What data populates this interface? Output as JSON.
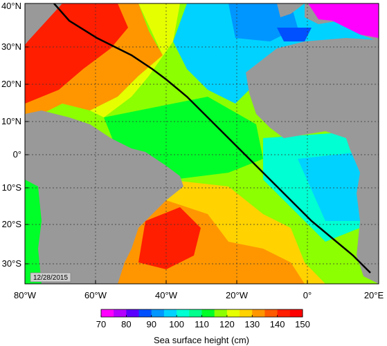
{
  "map": {
    "lat_labels": [
      "40°N",
      "30°N",
      "20°N",
      "10°N",
      "0°",
      "10°S",
      "20°S",
      "30°S"
    ],
    "lon_labels": [
      "80°W",
      "60°W",
      "40°W",
      "20°W",
      "0°",
      "20°E"
    ],
    "lon_range": [
      -80,
      20
    ],
    "lat_range": [
      -35,
      40
    ],
    "date_stamp": "12/28/2015",
    "land_color": "#999999",
    "track_color": "#000000"
  },
  "colorbar": {
    "title": "Sea surface height (cm)",
    "tick_labels": [
      "70",
      "80",
      "90",
      "100",
      "110",
      "120",
      "130",
      "140",
      "150"
    ],
    "range": [
      70,
      150
    ],
    "colors": [
      "#ff00ff",
      "#b400ff",
      "#5a00ff",
      "#0050ff",
      "#0096ff",
      "#00d2ff",
      "#00ffd2",
      "#00ff8c",
      "#00ff28",
      "#8cff00",
      "#e6ff00",
      "#ffd200",
      "#ff9600",
      "#ff5a00",
      "#ff1e00",
      "#ff0000"
    ]
  }
}
